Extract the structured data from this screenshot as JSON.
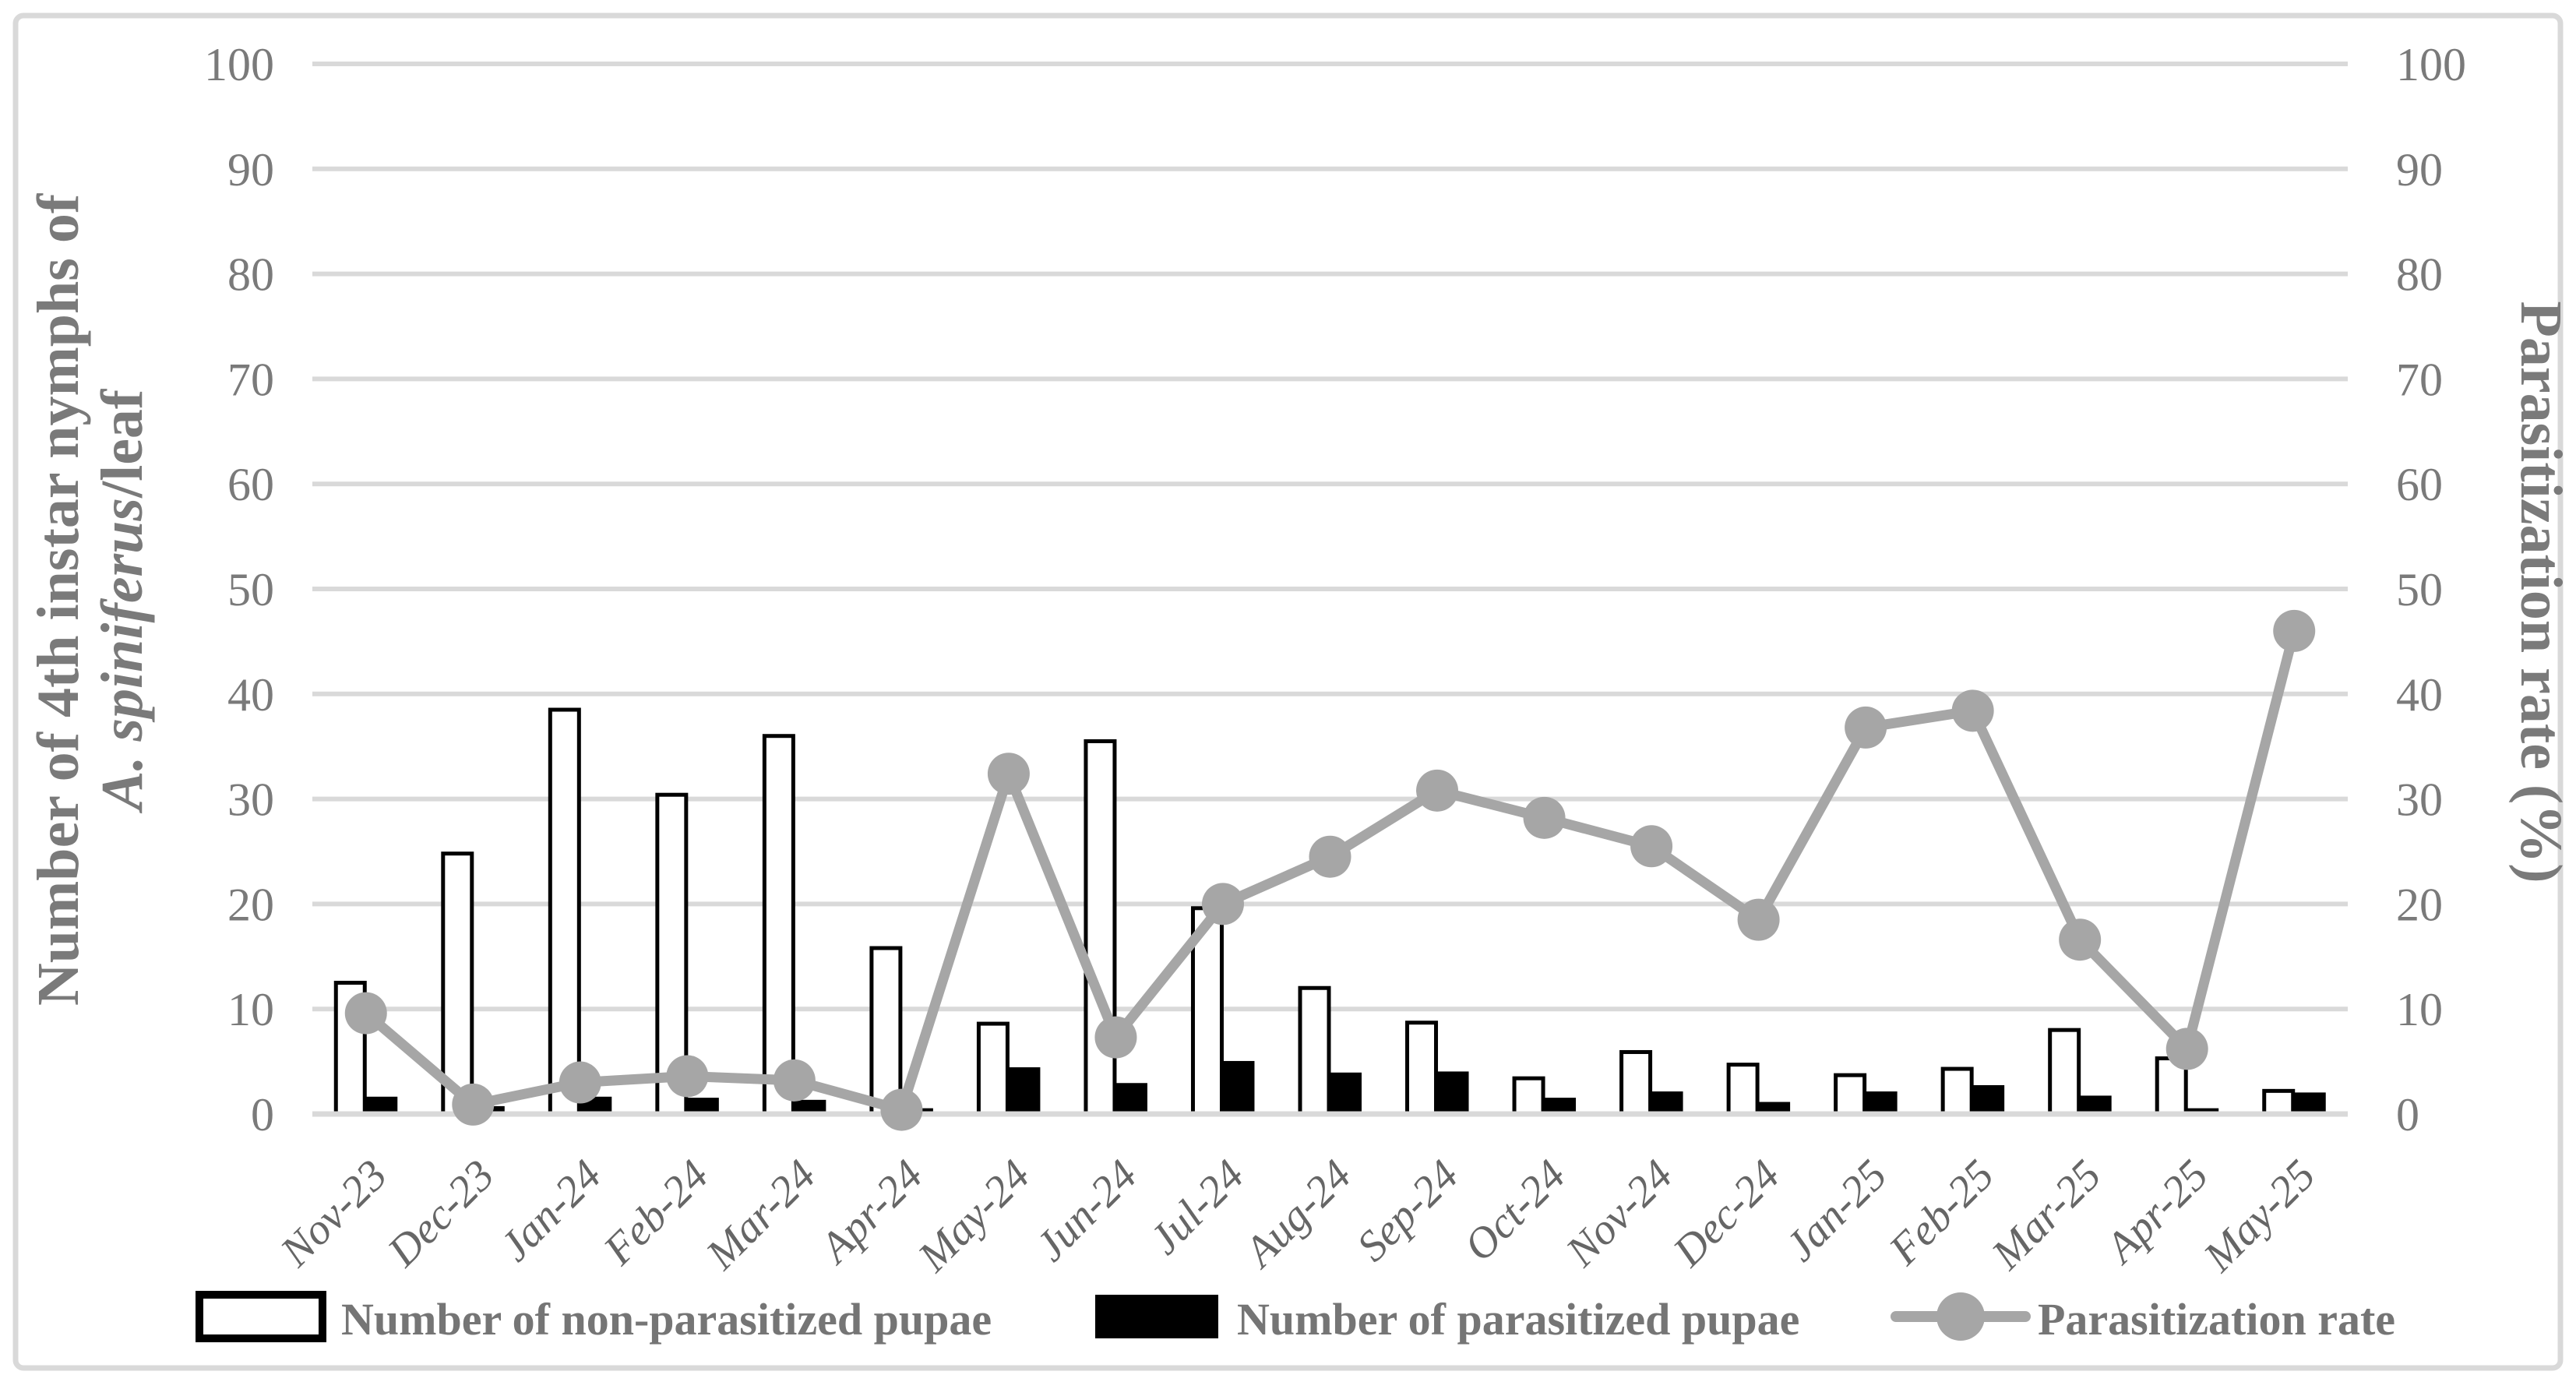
{
  "figure": {
    "background": "#ffffff",
    "frame_color": "#d9d9d9",
    "grid_color": "#d9d9d9",
    "zero_line_color": "#d9d9d9",
    "tick_text_color": "#7a7a7a",
    "x_label_color": "#666666",
    "title_text_color": "#7a7a7a",
    "legend_text_color": "#757575",
    "line_color": "#a6a6a6",
    "bar_outline_color": "#000000",
    "bar_white_fill": "#ffffff",
    "bar_black_fill": "#000000"
  },
  "chart_data": {
    "type": "combo",
    "categories": [
      "Nov-23",
      "Dec-23",
      "Jan-24",
      "Feb-24",
      "Mar-24",
      "Apr-24",
      "May-24",
      "Jun-24",
      "Jul-24",
      "Aug-24",
      "Sep-24",
      "Oct-24",
      "Nov-24",
      "Dec-24",
      "Jan-25",
      "Feb-25",
      "Mar-25",
      "Apr-25",
      "May-25"
    ],
    "series": [
      {
        "name": "Number of non-parasitized pupae",
        "type": "bar",
        "fill": "#ffffff",
        "stroke": "#000000",
        "axis": "left",
        "values": [
          12.5,
          24.8,
          38.5,
          30.4,
          36.0,
          15.8,
          8.6,
          35.5,
          19.6,
          12.0,
          8.7,
          3.4,
          5.9,
          4.7,
          3.7,
          4.3,
          8.0,
          5.3,
          2.2
        ]
      },
      {
        "name": "Number of parasitized pupae",
        "type": "bar",
        "fill": "#000000",
        "stroke": "#000000",
        "axis": "left",
        "values": [
          1.5,
          0.6,
          1.5,
          1.4,
          1.2,
          0.4,
          4.3,
          2.8,
          4.9,
          3.8,
          3.9,
          1.4,
          2.0,
          1.0,
          2.0,
          2.6,
          1.6,
          0.4,
          1.9
        ]
      },
      {
        "name": "Parasitization rate",
        "type": "line",
        "color": "#a6a6a6",
        "axis": "right",
        "values": [
          9.6,
          0.9,
          3.0,
          3.6,
          3.2,
          0.4,
          32.4,
          7.3,
          20.0,
          24.5,
          30.8,
          28.2,
          25.5,
          18.5,
          36.8,
          38.4,
          16.6,
          6.2,
          46.0
        ]
      }
    ],
    "left_axis": {
      "title_line1": "Number of 4th instar nymphs of",
      "title_line2_italic": "A. spiniferus",
      "title_line2_plain": "/leaf",
      "min": 0,
      "max": 100,
      "tick_step": 10
    },
    "right_axis": {
      "title": "Parasitization rate (%)",
      "min": 0,
      "max": 100,
      "tick_step": 10
    },
    "grid": true,
    "legend_position": "bottom"
  },
  "legend": {
    "items": [
      {
        "label": "Number of non-parasitized pupae",
        "swatch": "white-bar-swatch"
      },
      {
        "label": "Number of parasitized pupae",
        "swatch": "black-bar-swatch"
      },
      {
        "label": "Parasitization rate",
        "swatch": "gray-line-marker-swatch"
      }
    ]
  }
}
